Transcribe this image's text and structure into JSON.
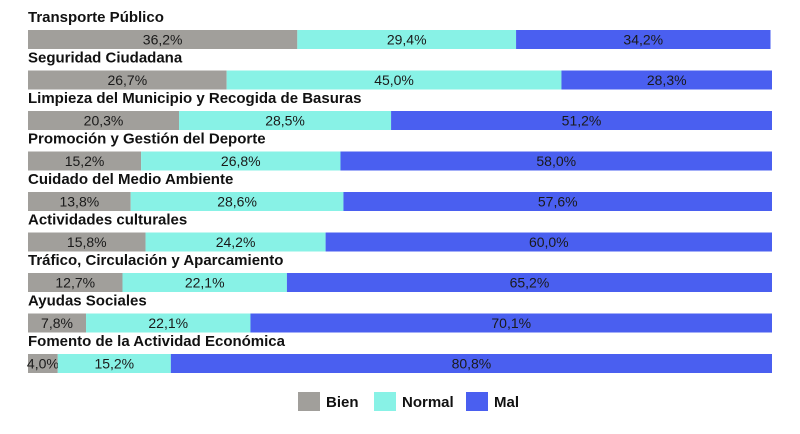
{
  "chart_data": {
    "type": "bar",
    "orientation": "horizontal",
    "stacked": "100%",
    "categories": [
      "Transporte Público",
      "Seguridad Ciudadana",
      "Limpieza del Municipio y Recogida de Basuras",
      "Promoción y Gestión del Deporte",
      "Cuidado del Medio Ambiente",
      "Actividades culturales",
      "Tráfico, Circulación y Aparcamiento",
      "Ayudas Sociales",
      "Fomento de la Actividad Económica"
    ],
    "series": [
      {
        "name": "Bien",
        "color": "#a19f9b",
        "values": [
          36.2,
          26.7,
          20.3,
          15.2,
          13.8,
          15.8,
          12.7,
          7.8,
          4.0
        ],
        "labels": [
          "36,2%",
          "26,7%",
          "20,3%",
          "15,2%",
          "13,8%",
          "15,8%",
          "12,7%",
          "7,8%",
          "4,0%"
        ]
      },
      {
        "name": "Normal",
        "color": "#88f2e6",
        "values": [
          29.4,
          45.0,
          28.5,
          26.8,
          28.6,
          24.2,
          22.1,
          22.1,
          15.2
        ],
        "labels": [
          "29,4%",
          "45,0%",
          "28,5%",
          "26,8%",
          "28,6%",
          "24,2%",
          "22,1%",
          "22,1%",
          "15,2%"
        ]
      },
      {
        "name": "Mal",
        "color": "#4a5ff0",
        "values": [
          34.2,
          28.3,
          51.2,
          58.0,
          57.6,
          60.0,
          65.2,
          70.1,
          80.8
        ],
        "labels": [
          "34,2%",
          "28,3%",
          "51,2%",
          "58,0%",
          "57,6%",
          "60,0%",
          "65,2%",
          "70,1%",
          "80,8%"
        ]
      }
    ],
    "xlim": [
      0,
      100
    ],
    "legend_position": "bottom-center",
    "grid": false
  }
}
